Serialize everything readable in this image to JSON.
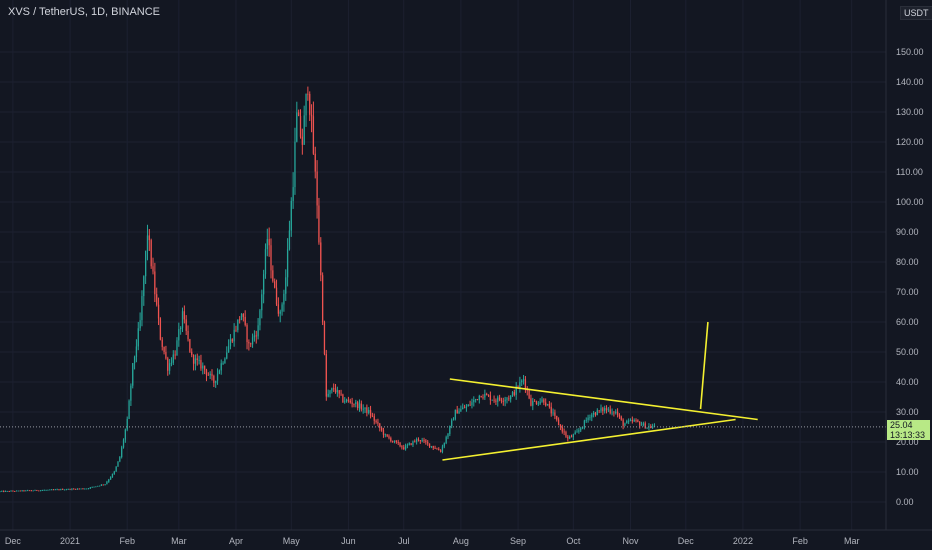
{
  "header": {
    "symbol_title": "XVS / TetherUS, 1D, BINANCE",
    "quote_currency": "USDT"
  },
  "last_price": {
    "value": "25.04",
    "countdown": "13:13:33"
  },
  "colors": {
    "background": "#131722",
    "up": "#26a69a",
    "down": "#ef5350",
    "trendline": "#f4f030",
    "last_price_tag": "#b8e986",
    "axis_text": "#b2b5be"
  },
  "chart_data": {
    "type": "candlestick",
    "title": "XVS / TetherUS, 1D, BINANCE",
    "xlabel": "",
    "ylabel": "",
    "ylim": [
      -10,
      160
    ],
    "y_ticks": [
      0,
      10,
      20,
      30,
      40,
      50,
      60,
      70,
      80,
      90,
      100,
      110,
      120,
      130,
      140,
      150
    ],
    "y_tick_labels": [
      "0.00",
      "10.00",
      "20.00",
      "30.00",
      "40.00",
      "50.00",
      "60.00",
      "70.00",
      "80.00",
      "90.00",
      "100.00",
      "110.00",
      "120.00",
      "130.00",
      "140.00",
      "150.00"
    ],
    "x_ticks": [
      {
        "label": "Dec",
        "date": "2020-12-01"
      },
      {
        "label": "2021",
        "date": "2021-01-01"
      },
      {
        "label": "Feb",
        "date": "2021-02-01"
      },
      {
        "label": "Mar",
        "date": "2021-03-01"
      },
      {
        "label": "Apr",
        "date": "2021-04-01"
      },
      {
        "label": "May",
        "date": "2021-05-01"
      },
      {
        "label": "Jun",
        "date": "2021-06-01"
      },
      {
        "label": "Jul",
        "date": "2021-07-01"
      },
      {
        "label": "Aug",
        "date": "2021-08-01"
      },
      {
        "label": "Sep",
        "date": "2021-09-01"
      },
      {
        "label": "Oct",
        "date": "2021-10-01"
      },
      {
        "label": "Nov",
        "date": "2021-11-01"
      },
      {
        "label": "Dec",
        "date": "2021-12-01"
      },
      {
        "label": "2022",
        "date": "2022-01-01"
      },
      {
        "label": "Feb",
        "date": "2022-02-01"
      },
      {
        "label": "Mar",
        "date": "2022-03-01"
      }
    ],
    "series": [
      {
        "price_path": [
          [
            "2020-11-24",
            3.5
          ],
          [
            "2020-12-20",
            4
          ],
          [
            "2021-01-10",
            4.5
          ],
          [
            "2021-01-20",
            6
          ],
          [
            "2021-01-25",
            10
          ],
          [
            "2021-01-28",
            15
          ],
          [
            "2021-02-01",
            27
          ],
          [
            "2021-02-04",
            45
          ],
          [
            "2021-02-08",
            60
          ],
          [
            "2021-02-12",
            90
          ],
          [
            "2021-02-15",
            75
          ],
          [
            "2021-02-19",
            55
          ],
          [
            "2021-02-23",
            45
          ],
          [
            "2021-02-27",
            50
          ],
          [
            "2021-03-03",
            62
          ],
          [
            "2021-03-08",
            48
          ],
          [
            "2021-03-14",
            45
          ],
          [
            "2021-03-20",
            40
          ],
          [
            "2021-03-28",
            52
          ],
          [
            "2021-04-04",
            63
          ],
          [
            "2021-04-08",
            52
          ],
          [
            "2021-04-13",
            58
          ],
          [
            "2021-04-18",
            88
          ],
          [
            "2021-04-22",
            70
          ],
          [
            "2021-04-25",
            62
          ],
          [
            "2021-04-28",
            75
          ],
          [
            "2021-05-02",
            108
          ],
          [
            "2021-05-04",
            128
          ],
          [
            "2021-05-07",
            120
          ],
          [
            "2021-05-10",
            140
          ],
          [
            "2021-05-12",
            125
          ],
          [
            "2021-05-15",
            100
          ],
          [
            "2021-05-17",
            75
          ],
          [
            "2021-05-20",
            35
          ],
          [
            "2021-05-24",
            38
          ],
          [
            "2021-05-29",
            34
          ],
          [
            "2021-06-04",
            33
          ],
          [
            "2021-06-12",
            30
          ],
          [
            "2021-06-21",
            22
          ],
          [
            "2021-07-01",
            18
          ],
          [
            "2021-07-09",
            21
          ],
          [
            "2021-07-15",
            19
          ],
          [
            "2021-07-21",
            17
          ],
          [
            "2021-07-25",
            23
          ],
          [
            "2021-07-29",
            30
          ],
          [
            "2021-08-05",
            32
          ],
          [
            "2021-08-12",
            36
          ],
          [
            "2021-08-20",
            34
          ],
          [
            "2021-08-28",
            35
          ],
          [
            "2021-09-04",
            41
          ],
          [
            "2021-09-08",
            33
          ],
          [
            "2021-09-15",
            34
          ],
          [
            "2021-09-22",
            27
          ],
          [
            "2021-09-28",
            21
          ],
          [
            "2021-10-03",
            23
          ],
          [
            "2021-10-10",
            29
          ],
          [
            "2021-10-18",
            31
          ],
          [
            "2021-10-24",
            30
          ],
          [
            "2021-10-28",
            26
          ],
          [
            "2021-11-03",
            27
          ],
          [
            "2021-11-10",
            25
          ],
          [
            "2021-11-14",
            25
          ]
        ]
      }
    ],
    "annotations": {
      "triangle_top_line": [
        [
          "2021-07-26",
          41
        ],
        [
          "2022-01-09",
          27.5
        ]
      ],
      "triangle_bottom_line": [
        [
          "2021-07-22",
          14
        ],
        [
          "2021-12-28",
          27.5
        ]
      ],
      "breakout_arrow": [
        [
          "2021-12-09",
          31
        ],
        [
          "2021-12-13",
          60
        ]
      ],
      "last_price_line": 25.04
    }
  }
}
